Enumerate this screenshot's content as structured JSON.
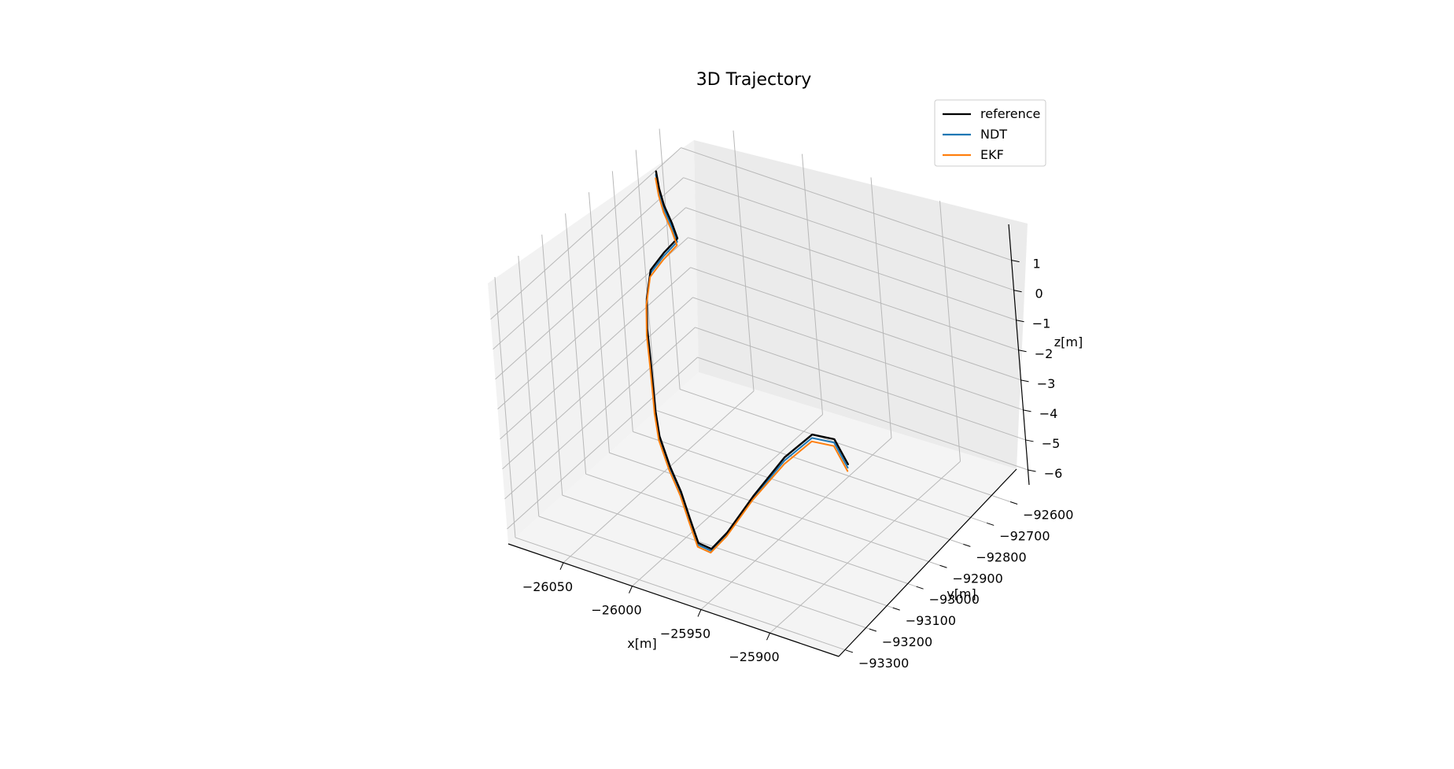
{
  "chart_data": {
    "type": "line",
    "title": "3D Trajectory",
    "xlabel": "x[m]",
    "ylabel": "y[m]",
    "zlabel": "z[m]",
    "xlim": [
      -26090,
      -25850
    ],
    "ylim": [
      -93330,
      -92520
    ],
    "zlim": [
      -6.5,
      2.2
    ],
    "x_ticks": [
      -26050,
      -26000,
      -25950,
      -25900
    ],
    "y_ticks": [
      -92600,
      -92700,
      -92800,
      -92900,
      -93000,
      -93100,
      -93200,
      -93300
    ],
    "z_ticks": [
      1,
      0,
      -1,
      -2,
      -3,
      -4,
      -5,
      -6
    ],
    "x_tick_labels": [
      "−26050",
      "−26000",
      "−25950",
      "−25900"
    ],
    "y_tick_labels": [
      "−92600",
      "−92700",
      "−92800",
      "−92900",
      "−93000",
      "−93100",
      "−93200",
      "−93300"
    ],
    "z_tick_labels": [
      "1",
      "0",
      "−1",
      "−2",
      "−3",
      "−4",
      "−5",
      "−6"
    ],
    "grid": true,
    "legend_position": "top-right",
    "series": [
      {
        "name": "reference",
        "color": "#000000",
        "points": [
          [
            -26080,
            -92680,
            1.5
          ],
          [
            -26074,
            -92705,
            1.2
          ],
          [
            -26067,
            -92728,
            0.9
          ],
          [
            -26058,
            -92750,
            0.6
          ],
          [
            -26052,
            -92765,
            0.3
          ],
          [
            -26062,
            -92770,
            -0.3
          ],
          [
            -26072,
            -92775,
            -1.0
          ],
          [
            -26076,
            -92778,
            -2.0
          ],
          [
            -26077,
            -92780,
            -3.0
          ],
          [
            -26076,
            -92782,
            -4.0
          ],
          [
            -26075,
            -92785,
            -5.0
          ],
          [
            -26072,
            -92800,
            -5.5
          ],
          [
            -26060,
            -92855,
            -5.8
          ],
          [
            -26040,
            -92930,
            -5.95
          ],
          [
            -26020,
            -93000,
            -6.0
          ],
          [
            -26000,
            -93080,
            -6.0
          ],
          [
            -25980,
            -93160,
            -5.95
          ],
          [
            -25965,
            -93190,
            -5.7
          ],
          [
            -25955,
            -93175,
            -5.1
          ],
          [
            -25940,
            -93140,
            -3.9
          ],
          [
            -25920,
            -93110,
            -2.5
          ],
          [
            -25900,
            -93100,
            -1.5
          ],
          [
            -25880,
            -93120,
            -1.2
          ],
          [
            -25860,
            -93180,
            -1.3
          ]
        ]
      },
      {
        "name": "NDT",
        "color": "#1f77b4",
        "points": [
          [
            -26080,
            -92682,
            1.4
          ],
          [
            -26074,
            -92707,
            1.1
          ],
          [
            -26067,
            -92730,
            0.8
          ],
          [
            -26058,
            -92752,
            0.5
          ],
          [
            -26052,
            -92767,
            0.2
          ],
          [
            -26062,
            -92772,
            -0.4
          ],
          [
            -26072,
            -92777,
            -1.1
          ],
          [
            -26076,
            -92780,
            -2.1
          ],
          [
            -26077,
            -92782,
            -3.1
          ],
          [
            -26076,
            -92784,
            -4.1
          ],
          [
            -26075,
            -92787,
            -5.05
          ],
          [
            -26072,
            -92802,
            -5.55
          ],
          [
            -26060,
            -92857,
            -5.85
          ],
          [
            -26040,
            -92932,
            -6.0
          ],
          [
            -26020,
            -93002,
            -6.05
          ],
          [
            -26000,
            -93082,
            -6.05
          ],
          [
            -25980,
            -93162,
            -6.0
          ],
          [
            -25965,
            -93192,
            -5.75
          ],
          [
            -25955,
            -93177,
            -5.15
          ],
          [
            -25940,
            -93142,
            -3.95
          ],
          [
            -25920,
            -93112,
            -2.6
          ],
          [
            -25900,
            -93102,
            -1.6
          ],
          [
            -25880,
            -93122,
            -1.3
          ],
          [
            -25860,
            -93182,
            -1.4
          ]
        ]
      },
      {
        "name": "EKF",
        "color": "#ff7f0e",
        "points": [
          [
            -26080,
            -92684,
            1.3
          ],
          [
            -26074,
            -92709,
            1.0
          ],
          [
            -26067,
            -92732,
            0.7
          ],
          [
            -26058,
            -92754,
            0.4
          ],
          [
            -26052,
            -92769,
            0.1
          ],
          [
            -26062,
            -92774,
            -0.5
          ],
          [
            -26072,
            -92779,
            -1.2
          ],
          [
            -26076,
            -92782,
            -2.2
          ],
          [
            -26077,
            -92784,
            -3.2
          ],
          [
            -26076,
            -92786,
            -4.2
          ],
          [
            -26075,
            -92789,
            -5.1
          ],
          [
            -26072,
            -92804,
            -5.6
          ],
          [
            -26060,
            -92859,
            -5.9
          ],
          [
            -26040,
            -92934,
            -6.05
          ],
          [
            -26020,
            -93004,
            -6.1
          ],
          [
            -26000,
            -93084,
            -6.1
          ],
          [
            -25980,
            -93164,
            -6.05
          ],
          [
            -25965,
            -93194,
            -5.8
          ],
          [
            -25955,
            -93179,
            -5.2
          ],
          [
            -25940,
            -93144,
            -4.0
          ],
          [
            -25920,
            -93114,
            -2.7
          ],
          [
            -25900,
            -93104,
            -1.7
          ],
          [
            -25880,
            -93124,
            -1.4
          ],
          [
            -25860,
            -93184,
            -1.5
          ]
        ]
      }
    ]
  }
}
